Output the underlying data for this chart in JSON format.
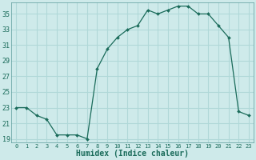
{
  "x": [
    0,
    1,
    2,
    3,
    4,
    5,
    6,
    7,
    8,
    9,
    10,
    11,
    12,
    13,
    14,
    15,
    16,
    17,
    18,
    19,
    20,
    21,
    22,
    23
  ],
  "y": [
    23,
    23,
    22,
    21.5,
    19.5,
    19.5,
    19.5,
    19,
    28,
    30.5,
    32,
    33,
    33.5,
    35.5,
    35,
    35.5,
    36,
    36,
    35,
    35,
    33.5,
    32,
    22.5,
    22
  ],
  "line_color": "#1a6b5a",
  "marker": "D",
  "marker_size": 2.0,
  "bg_color": "#ceeaea",
  "grid_color": "#b0d8d8",
  "xlabel": "Humidex (Indice chaleur)",
  "xlabel_fontsize": 7,
  "ytick_labels": [
    "19",
    "21",
    "23",
    "25",
    "27",
    "29",
    "31",
    "33",
    "35"
  ],
  "yticks": [
    19,
    21,
    23,
    25,
    27,
    29,
    31,
    33,
    35
  ],
  "xtick_labels": [
    "0",
    "1",
    "2",
    "3",
    "4",
    "5",
    "6",
    "7",
    "8",
    "9",
    "10",
    "11",
    "12",
    "13",
    "14",
    "15",
    "16",
    "17",
    "18",
    "19",
    "20",
    "21",
    "22",
    "23"
  ],
  "xticks": [
    0,
    1,
    2,
    3,
    4,
    5,
    6,
    7,
    8,
    9,
    10,
    11,
    12,
    13,
    14,
    15,
    16,
    17,
    18,
    19,
    20,
    21,
    22,
    23
  ],
  "xlim": [
    -0.5,
    23.5
  ],
  "ylim": [
    18.5,
    36.5
  ],
  "line_width": 0.9
}
